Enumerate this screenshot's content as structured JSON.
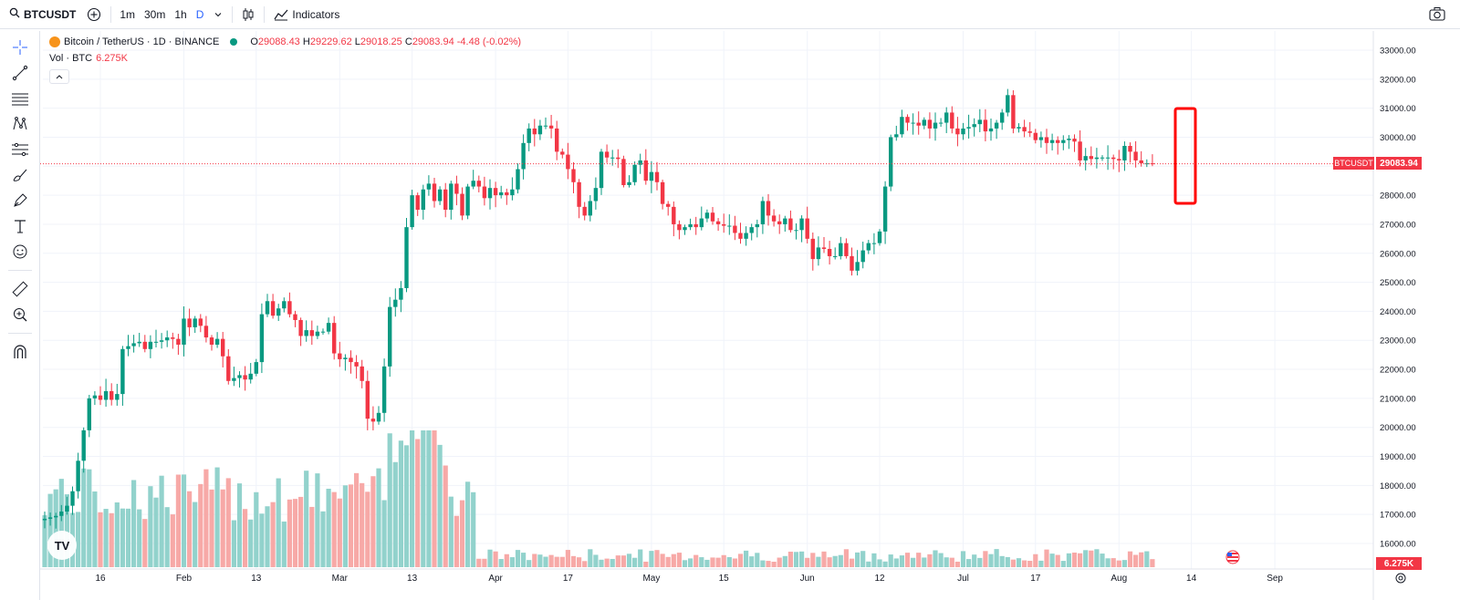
{
  "toolbar": {
    "symbol": "BTCUSDT",
    "intervals": [
      "1m",
      "30m",
      "1h",
      "D"
    ],
    "active_interval": "D",
    "indicators_label": "Indicators"
  },
  "legend": {
    "title": "Bitcoin / TetherUS · 1D · BINANCE",
    "open_key": "O",
    "open": "29088.43",
    "high_key": "H",
    "high": "29229.62",
    "low_key": "L",
    "low": "29018.25",
    "close_key": "C",
    "close": "29083.94",
    "change": "-4.48 (-0.02%)",
    "vol_label": "Vol · BTC",
    "vol_value": "6.275K"
  },
  "price_axis": {
    "labels": [
      "33000.00",
      "32000.00",
      "31000.00",
      "30000.00",
      "29000.00",
      "28000.00",
      "27000.00",
      "26000.00",
      "25000.00",
      "24000.00",
      "23000.00",
      "22000.00",
      "21000.00",
      "20000.00",
      "19000.00",
      "18000.00",
      "17000.00",
      "16000.00"
    ],
    "symbol_tag": "BTCUSDT",
    "last_price_tag": "29083.94",
    "volume_tag": "6.275K"
  },
  "time_axis": {
    "labels": [
      "16",
      "Feb",
      "13",
      "Mar",
      "13",
      "Apr",
      "17",
      "May",
      "15",
      "Jun",
      "12",
      "Jul",
      "17",
      "Aug",
      "14",
      "Sep"
    ]
  },
  "colors": {
    "up": "#089981",
    "down": "#f23645",
    "vol_up": "#92d2cc",
    "vol_down": "#f7a9a7",
    "highlight_box": "#ff0000"
  },
  "chart_data": {
    "type": "candlestick",
    "title": "Bitcoin / TetherUS · 1D · BINANCE",
    "x_axis_ticks": [
      "16",
      "Feb",
      "13",
      "Mar",
      "13",
      "Apr",
      "17",
      "May",
      "15",
      "Jun",
      "12",
      "Jul",
      "17",
      "Aug",
      "14",
      "Sep"
    ],
    "ylim": [
      15600,
      33400
    ],
    "y_ticks": [
      16000,
      17000,
      18000,
      19000,
      20000,
      21000,
      22000,
      23000,
      24000,
      25000,
      26000,
      27000,
      28000,
      29000,
      30000,
      31000,
      32000,
      33000
    ],
    "last_close": 29083.94,
    "closes": [
      16850,
      16900,
      16950,
      17100,
      17300,
      17800,
      18850,
      19900,
      21000,
      21100,
      20950,
      21250,
      20950,
      21150,
      22700,
      22800,
      22900,
      22950,
      22700,
      22950,
      22950,
      23000,
      23100,
      23050,
      22850,
      23750,
      23450,
      23750,
      23500,
      23100,
      22850,
      23050,
      22450,
      21600,
      21700,
      21800,
      21650,
      21850,
      22250,
      23900,
      24350,
      23850,
      24100,
      24350,
      23900,
      23700,
      23150,
      23350,
      23150,
      23300,
      23300,
      23600,
      22550,
      22350,
      22400,
      22250,
      22100,
      21600,
      20300,
      20200,
      20500,
      22100,
      24150,
      24400,
      24800,
      26900,
      28000,
      27500,
      28200,
      28400,
      27800,
      28200,
      27500,
      28400,
      28050,
      27300,
      28300,
      28500,
      28300,
      27900,
      28250,
      28000,
      28100,
      28000,
      28200,
      28900,
      29800,
      30300,
      30100,
      30400,
      30400,
      30300,
      29500,
      29400,
      28900,
      28450,
      27600,
      27300,
      27800,
      28250,
      29500,
      29300,
      29300,
      29250,
      28350,
      28450,
      29050,
      29200,
      28500,
      28800,
      28450,
      27700,
      27600,
      27000,
      26800,
      26900,
      27000,
      26900,
      27200,
      27400,
      27100,
      27000,
      26950,
      26950,
      26700,
      26500,
      26700,
      26900,
      27000,
      27800,
      27300,
      27100,
      27000,
      27200,
      26800,
      26800,
      27200,
      26500,
      25800,
      26200,
      26150,
      25900,
      25900,
      26350,
      25900,
      25400,
      25700,
      26100,
      26350,
      26350,
      26750,
      28300,
      30000,
      30100,
      30700,
      30500,
      30500,
      30400,
      30600,
      30300,
      30500,
      30500,
      30850,
      30300,
      30100,
      30300,
      30350,
      30450,
      30600,
      30200,
      30300,
      30500,
      30850,
      31450,
      30300,
      30350,
      30200,
      30150,
      29900,
      30000,
      29800,
      29900,
      29800,
      29900,
      29950,
      29850,
      29200,
      29350,
      29250,
      29300,
      29300,
      29300,
      29250,
      29200,
      29700,
      29500,
      29200,
      29100,
      29100,
      29083.94
    ],
    "volume_series_name": "Vol · BTC",
    "last_volume": "6.275K"
  }
}
